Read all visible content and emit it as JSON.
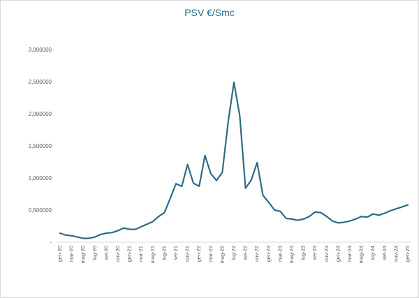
{
  "chart_data": {
    "type": "line",
    "title": "PSV €/Smc",
    "xlabel": "",
    "ylabel": "",
    "ylim": [
      0,
      3.0
    ],
    "grid": false,
    "colors": {
      "line": "#2e6b87",
      "axis": "#d9d9d9"
    },
    "y_ticks": [
      {
        "value": 0,
        "label": "-"
      },
      {
        "value": 0.5,
        "label": "0,500000"
      },
      {
        "value": 1.0,
        "label": "1,000000"
      },
      {
        "value": 1.5,
        "label": "1,500000"
      },
      {
        "value": 2.0,
        "label": "2,000000"
      },
      {
        "value": 2.5,
        "label": "2,500000"
      },
      {
        "value": 3.0,
        "label": "3,000000"
      }
    ],
    "x_tick_labels": [
      {
        "index": 0,
        "label": "gen-20"
      },
      {
        "index": 2,
        "label": "mar-20"
      },
      {
        "index": 4,
        "label": "mag-20"
      },
      {
        "index": 6,
        "label": "lug-20"
      },
      {
        "index": 8,
        "label": "set-20"
      },
      {
        "index": 10,
        "label": "nov-20"
      },
      {
        "index": 12,
        "label": "gen-21"
      },
      {
        "index": 14,
        "label": "mar-21"
      },
      {
        "index": 16,
        "label": "mag-21"
      },
      {
        "index": 18,
        "label": "lug-21"
      },
      {
        "index": 20,
        "label": "set-21"
      },
      {
        "index": 22,
        "label": "nov-21"
      },
      {
        "index": 24,
        "label": "gen-22"
      },
      {
        "index": 26,
        "label": "mar-22"
      },
      {
        "index": 28,
        "label": "mag-22"
      },
      {
        "index": 30,
        "label": "lug-22"
      },
      {
        "index": 32,
        "label": "set-22"
      },
      {
        "index": 34,
        "label": "nov-22"
      },
      {
        "index": 36,
        "label": "gen-23"
      },
      {
        "index": 38,
        "label": "mar-23"
      },
      {
        "index": 40,
        "label": "mag-23"
      },
      {
        "index": 42,
        "label": "lug-23"
      },
      {
        "index": 44,
        "label": "set-23"
      },
      {
        "index": 46,
        "label": "nov-23"
      },
      {
        "index": 48,
        "label": "gen-24"
      },
      {
        "index": 50,
        "label": "mar-24"
      },
      {
        "index": 52,
        "label": "mag-24"
      },
      {
        "index": 54,
        "label": "lug-24"
      },
      {
        "index": 56,
        "label": "set-24"
      },
      {
        "index": 58,
        "label": "nov-24"
      },
      {
        "index": 60,
        "label": "gen-25"
      }
    ],
    "series": [
      {
        "values": [
          0.14,
          0.11,
          0.1,
          0.08,
          0.06,
          0.06,
          0.08,
          0.12,
          0.14,
          0.15,
          0.18,
          0.22,
          0.2,
          0.2,
          0.24,
          0.28,
          0.32,
          0.4,
          0.46,
          0.68,
          0.91,
          0.87,
          1.21,
          0.92,
          0.87,
          1.35,
          1.07,
          0.96,
          1.09,
          1.87,
          2.49,
          1.97,
          0.84,
          0.97,
          1.24,
          0.73,
          0.62,
          0.5,
          0.48,
          0.37,
          0.36,
          0.34,
          0.36,
          0.4,
          0.47,
          0.46,
          0.4,
          0.33,
          0.3,
          0.31,
          0.33,
          0.36,
          0.4,
          0.39,
          0.44,
          0.42,
          0.45,
          0.49,
          0.52,
          0.55,
          0.58
        ]
      }
    ]
  }
}
